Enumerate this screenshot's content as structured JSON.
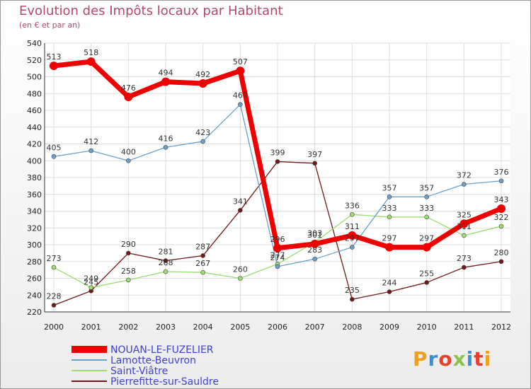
{
  "title": "Evolution des Impôts locaux par Habitant",
  "subtitle": "(en € et par an)",
  "logo": "Proxiti",
  "chart_data": {
    "type": "line",
    "x": [
      "2000",
      "2001",
      "2002",
      "2003",
      "2004",
      "2005",
      "2006",
      "2007",
      "2008",
      "2009",
      "2010",
      "2011",
      "2012"
    ],
    "ylim": [
      220,
      540
    ],
    "yticks": [
      220,
      240,
      260,
      280,
      300,
      320,
      340,
      360,
      380,
      400,
      420,
      440,
      460,
      480,
      500,
      520,
      540
    ],
    "grid": true,
    "legend_position": "bottom",
    "series": [
      {
        "name": "Pierrefitte-sur-Sauldre",
        "color": "#6e1a1a",
        "width": 1.3,
        "values": [
          228,
          245,
          290,
          281,
          287,
          341,
          399,
          397,
          235,
          244,
          255,
          273,
          280
        ],
        "labels": [
          "228",
          "245",
          "290",
          "281",
          "287",
          "341",
          "399",
          "397",
          "235",
          "244",
          "255",
          "273",
          "280"
        ]
      },
      {
        "name": "Saint-Viâtre",
        "color": "#9ddc73",
        "width": 1.3,
        "values": [
          273,
          249,
          258,
          268,
          267,
          260,
          277,
          303,
          336,
          333,
          333,
          311,
          322
        ],
        "labels": [
          "273",
          "249",
          "258",
          "268",
          "267",
          "260",
          "277",
          "303",
          "336",
          "333",
          "333",
          "311",
          "322"
        ]
      },
      {
        "name": "Lamotte-Beuvron",
        "color": "#6aa0cc",
        "width": 1.3,
        "values": [
          405,
          412,
          400,
          416,
          423,
          467,
          274,
          283,
          297,
          357,
          357,
          372,
          376
        ],
        "labels": [
          "405",
          "412",
          "400",
          "416",
          "423",
          "467",
          "274",
          "283",
          "297",
          "357",
          "357",
          "372",
          "376"
        ]
      },
      {
        "name": "NOUAN-LE-FUZELIER",
        "color": "#ee0000",
        "width": 7,
        "values": [
          513,
          518,
          476,
          494,
          492,
          507,
          296,
          301,
          311,
          297,
          297,
          325,
          343
        ],
        "labels": [
          "513",
          "518",
          "476",
          "494",
          "492",
          "507",
          "296",
          "301",
          "311",
          "297",
          "297",
          "325",
          "343"
        ]
      }
    ]
  },
  "legend": [
    {
      "name": "NOUAN-LE-FUZELIER",
      "color": "#ee0000"
    },
    {
      "name": "Lamotte-Beuvron",
      "color": "#6aa0cc"
    },
    {
      "name": "Saint-Viâtre",
      "color": "#9ddc73"
    },
    {
      "name": "Pierrefitte-sur-Sauldre",
      "color": "#6e1a1a"
    }
  ]
}
